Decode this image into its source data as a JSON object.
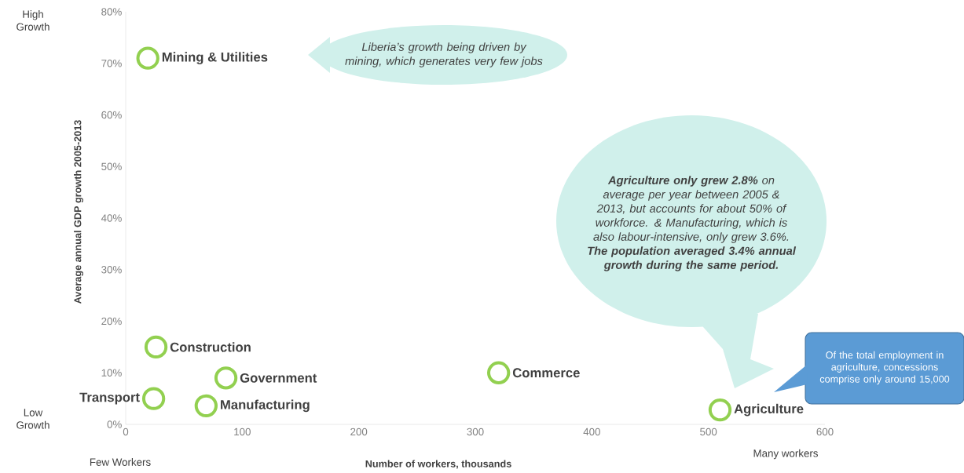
{
  "chart_data": {
    "type": "scatter",
    "xlabel": "Number of workers, thousands",
    "ylabel": "Average annual GDP growth 2005-2013",
    "xlim": [
      0,
      600
    ],
    "ylim": [
      0,
      80
    ],
    "xticks": [
      0,
      100,
      200,
      300,
      400,
      500,
      600
    ],
    "yticks": [
      {
        "value": 0,
        "label": "0%"
      },
      {
        "value": 10,
        "label": "10%"
      },
      {
        "value": 20,
        "label": "20%"
      },
      {
        "value": 30,
        "label": "30%"
      },
      {
        "value": 40,
        "label": "40%"
      },
      {
        "value": 50,
        "label": "50%"
      },
      {
        "value": 60,
        "label": "60%"
      },
      {
        "value": 70,
        "label": "70%"
      },
      {
        "value": 80,
        "label": "80%"
      }
    ],
    "marker": "circle",
    "series": [
      {
        "color": "#92d050",
        "x": [
          19,
          26,
          86,
          24,
          69,
          320,
          510
        ],
        "values": [
          71,
          15,
          9,
          5,
          3.6,
          10,
          2.8
        ],
        "value_labels": [
          "Mining & Utilities",
          "Construction",
          "Government",
          "Transport",
          "Manufacturing",
          "Commerce",
          "Agriculture"
        ]
      }
    ],
    "annotations": [
      "High Growth",
      "Low Growth",
      "Few Workers",
      "Many workers",
      "Liberia’s growth being driven by mining, which generates very few jobs",
      "**Agriculture only grew 2.8%** on average per year between 2005 & 2013, but accounts for about 50% of workforce. & Manufacturing, which is also labour-intensive, only grew 3.6%. **The population averaged 3.4% annual growth during the same period.**",
      "Of the total employment in agriculture, concessions comprise only around 15,000"
    ]
  }
}
